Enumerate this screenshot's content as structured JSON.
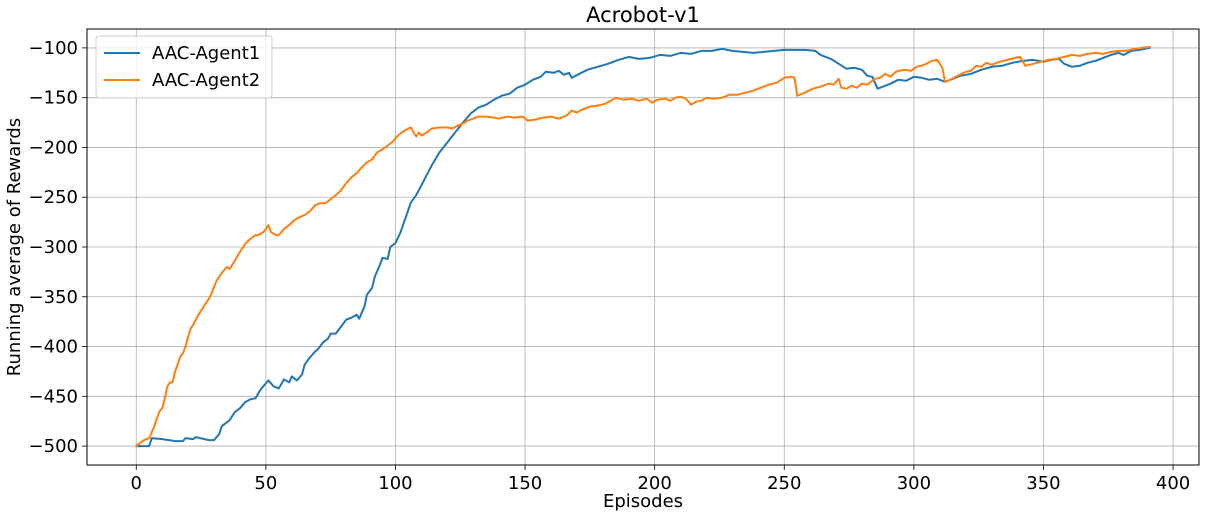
{
  "chart_data": {
    "type": "line",
    "title": "Acrobot-v1",
    "xlabel": "Episodes",
    "ylabel": "Running average of Rewards",
    "xlim": [
      -19,
      410
    ],
    "ylim": [
      -519,
      -81
    ],
    "xticks": [
      0,
      50,
      100,
      150,
      200,
      250,
      300,
      350,
      400
    ],
    "yticks": [
      -500,
      -450,
      -400,
      -350,
      -300,
      -250,
      -200,
      -150,
      -100
    ],
    "grid": true,
    "legend_position": "top-left",
    "series": [
      {
        "name": "AAC-Agent1",
        "color": "#1f77b4",
        "points": [
          [
            0,
            -500
          ],
          [
            5,
            -500
          ],
          [
            6,
            -492
          ],
          [
            10,
            -493
          ],
          [
            15,
            -495
          ],
          [
            18,
            -495
          ],
          [
            19,
            -492
          ],
          [
            22,
            -493
          ],
          [
            23,
            -491
          ],
          [
            28,
            -494
          ],
          [
            30,
            -494
          ],
          [
            32,
            -488
          ],
          [
            33,
            -480
          ],
          [
            36,
            -474
          ],
          [
            38,
            -466
          ],
          [
            40,
            -462
          ],
          [
            42,
            -456
          ],
          [
            44,
            -453
          ],
          [
            46,
            -452
          ],
          [
            48,
            -443
          ],
          [
            51,
            -434
          ],
          [
            53,
            -440
          ],
          [
            55,
            -442
          ],
          [
            57,
            -433
          ],
          [
            59,
            -436
          ],
          [
            60,
            -430
          ],
          [
            62,
            -434
          ],
          [
            64,
            -428
          ],
          [
            65,
            -418
          ],
          [
            67,
            -411
          ],
          [
            69,
            -405
          ],
          [
            70,
            -403
          ],
          [
            72,
            -396
          ],
          [
            74,
            -392
          ],
          [
            75,
            -387
          ],
          [
            77,
            -387
          ],
          [
            79,
            -380
          ],
          [
            81,
            -373
          ],
          [
            83,
            -371
          ],
          [
            85,
            -368
          ],
          [
            86,
            -372
          ],
          [
            88,
            -360
          ],
          [
            89,
            -348
          ],
          [
            91,
            -341
          ],
          [
            92,
            -330
          ],
          [
            94,
            -318
          ],
          [
            95,
            -311
          ],
          [
            97,
            -312
          ],
          [
            98,
            -300
          ],
          [
            100,
            -296
          ],
          [
            102,
            -285
          ],
          [
            104,
            -270
          ],
          [
            106,
            -255
          ],
          [
            108,
            -248
          ],
          [
            110,
            -238
          ],
          [
            112,
            -228
          ],
          [
            114,
            -218
          ],
          [
            117,
            -205
          ],
          [
            120,
            -195
          ],
          [
            123,
            -185
          ],
          [
            126,
            -175
          ],
          [
            129,
            -166
          ],
          [
            132,
            -160
          ],
          [
            135,
            -157
          ],
          [
            138,
            -152
          ],
          [
            141,
            -148
          ],
          [
            144,
            -146
          ],
          [
            147,
            -140
          ],
          [
            150,
            -137
          ],
          [
            153,
            -132
          ],
          [
            156,
            -129
          ],
          [
            158,
            -124
          ],
          [
            161,
            -125
          ],
          [
            163,
            -123
          ],
          [
            165,
            -127
          ],
          [
            167,
            -125
          ],
          [
            168,
            -130
          ],
          [
            171,
            -126
          ],
          [
            174,
            -122
          ],
          [
            178,
            -119
          ],
          [
            182,
            -116
          ],
          [
            186,
            -112
          ],
          [
            190,
            -109
          ],
          [
            194,
            -111
          ],
          [
            198,
            -110
          ],
          [
            202,
            -107
          ],
          [
            206,
            -108
          ],
          [
            210,
            -105
          ],
          [
            214,
            -106
          ],
          [
            218,
            -103
          ],
          [
            222,
            -103
          ],
          [
            226,
            -101
          ],
          [
            230,
            -103
          ],
          [
            234,
            -104
          ],
          [
            238,
            -105
          ],
          [
            242,
            -104
          ],
          [
            246,
            -103
          ],
          [
            250,
            -102
          ],
          [
            254,
            -102
          ],
          [
            258,
            -102
          ],
          [
            262,
            -103
          ],
          [
            264,
            -107
          ],
          [
            268,
            -111
          ],
          [
            271,
            -116
          ],
          [
            274,
            -121
          ],
          [
            277,
            -120
          ],
          [
            280,
            -122
          ],
          [
            282,
            -128
          ],
          [
            284,
            -129
          ],
          [
            286,
            -141
          ],
          [
            288,
            -139
          ],
          [
            291,
            -136
          ],
          [
            294,
            -132
          ],
          [
            297,
            -133
          ],
          [
            300,
            -129
          ],
          [
            303,
            -130
          ],
          [
            306,
            -132
          ],
          [
            309,
            -131
          ],
          [
            312,
            -134
          ],
          [
            315,
            -131
          ],
          [
            318,
            -128
          ],
          [
            322,
            -126
          ],
          [
            326,
            -122
          ],
          [
            330,
            -119
          ],
          [
            334,
            -118
          ],
          [
            338,
            -115
          ],
          [
            342,
            -113
          ],
          [
            346,
            -112
          ],
          [
            350,
            -114
          ],
          [
            353,
            -112
          ],
          [
            356,
            -111
          ],
          [
            358,
            -116
          ],
          [
            361,
            -119
          ],
          [
            364,
            -118
          ],
          [
            367,
            -115
          ],
          [
            370,
            -113
          ],
          [
            373,
            -110
          ],
          [
            376,
            -107
          ],
          [
            379,
            -105
          ],
          [
            381,
            -107
          ],
          [
            384,
            -103
          ],
          [
            387,
            -102
          ],
          [
            391,
            -100
          ]
        ]
      },
      {
        "name": "AAC-Agent2",
        "color": "#ff7f0e",
        "points": [
          [
            0,
            -500
          ],
          [
            1,
            -498
          ],
          [
            3,
            -494
          ],
          [
            5,
            -492
          ],
          [
            6,
            -486
          ],
          [
            7,
            -480
          ],
          [
            8,
            -472
          ],
          [
            9,
            -465
          ],
          [
            10,
            -462
          ],
          [
            11,
            -452
          ],
          [
            12,
            -440
          ],
          [
            13,
            -436
          ],
          [
            14,
            -436
          ],
          [
            15,
            -425
          ],
          [
            16,
            -418
          ],
          [
            17,
            -410
          ],
          [
            18,
            -407
          ],
          [
            19,
            -400
          ],
          [
            20,
            -390
          ],
          [
            21,
            -382
          ],
          [
            22,
            -378
          ],
          [
            24,
            -368
          ],
          [
            26,
            -360
          ],
          [
            28,
            -352
          ],
          [
            29,
            -347
          ],
          [
            31,
            -334
          ],
          [
            33,
            -326
          ],
          [
            35,
            -320
          ],
          [
            36,
            -322
          ],
          [
            38,
            -314
          ],
          [
            40,
            -305
          ],
          [
            42,
            -297
          ],
          [
            44,
            -292
          ],
          [
            46,
            -288
          ],
          [
            47,
            -288
          ],
          [
            49,
            -285
          ],
          [
            50,
            -282
          ],
          [
            51,
            -278
          ],
          [
            52,
            -285
          ],
          [
            54,
            -288
          ],
          [
            55,
            -288
          ],
          [
            57,
            -282
          ],
          [
            59,
            -278
          ],
          [
            61,
            -273
          ],
          [
            63,
            -270
          ],
          [
            65,
            -268
          ],
          [
            67,
            -264
          ],
          [
            69,
            -258
          ],
          [
            71,
            -256
          ],
          [
            73,
            -256
          ],
          [
            75,
            -252
          ],
          [
            77,
            -248
          ],
          [
            79,
            -243
          ],
          [
            81,
            -236
          ],
          [
            83,
            -230
          ],
          [
            85,
            -226
          ],
          [
            87,
            -220
          ],
          [
            89,
            -215
          ],
          [
            91,
            -212
          ],
          [
            93,
            -205
          ],
          [
            95,
            -202
          ],
          [
            97,
            -198
          ],
          [
            99,
            -194
          ],
          [
            101,
            -188
          ],
          [
            103,
            -184
          ],
          [
            105,
            -181
          ],
          [
            106,
            -180
          ],
          [
            107,
            -185
          ],
          [
            108,
            -189
          ],
          [
            109,
            -185
          ],
          [
            110,
            -188
          ],
          [
            112,
            -185
          ],
          [
            114,
            -181
          ],
          [
            117,
            -180
          ],
          [
            120,
            -180
          ],
          [
            122,
            -181
          ],
          [
            124,
            -178
          ],
          [
            126,
            -176
          ],
          [
            128,
            -173
          ],
          [
            130,
            -171
          ],
          [
            132,
            -169
          ],
          [
            135,
            -169
          ],
          [
            138,
            -170
          ],
          [
            140,
            -171
          ],
          [
            143,
            -169
          ],
          [
            146,
            -170
          ],
          [
            149,
            -169
          ],
          [
            151,
            -173
          ],
          [
            154,
            -172
          ],
          [
            157,
            -170
          ],
          [
            160,
            -169
          ],
          [
            163,
            -171
          ],
          [
            166,
            -168
          ],
          [
            168,
            -163
          ],
          [
            170,
            -165
          ],
          [
            172,
            -162
          ],
          [
            175,
            -159
          ],
          [
            178,
            -158
          ],
          [
            181,
            -156
          ],
          [
            183,
            -153
          ],
          [
            185,
            -150
          ],
          [
            188,
            -152
          ],
          [
            191,
            -151
          ],
          [
            194,
            -153
          ],
          [
            197,
            -151
          ],
          [
            199,
            -155
          ],
          [
            201,
            -152
          ],
          [
            204,
            -151
          ],
          [
            206,
            -153
          ],
          [
            208,
            -150
          ],
          [
            210,
            -149
          ],
          [
            212,
            -151
          ],
          [
            214,
            -157
          ],
          [
            216,
            -154
          ],
          [
            218,
            -153
          ],
          [
            220,
            -150
          ],
          [
            223,
            -151
          ],
          [
            226,
            -150
          ],
          [
            229,
            -147
          ],
          [
            232,
            -147
          ],
          [
            235,
            -145
          ],
          [
            238,
            -143
          ],
          [
            241,
            -140
          ],
          [
            244,
            -137
          ],
          [
            247,
            -135
          ],
          [
            250,
            -130
          ],
          [
            253,
            -129
          ],
          [
            254,
            -130
          ],
          [
            255,
            -148
          ],
          [
            258,
            -145
          ],
          [
            261,
            -141
          ],
          [
            264,
            -139
          ],
          [
            267,
            -136
          ],
          [
            269,
            -137
          ],
          [
            271,
            -131
          ],
          [
            272,
            -140
          ],
          [
            274,
            -141
          ],
          [
            276,
            -138
          ],
          [
            278,
            -140
          ],
          [
            280,
            -136
          ],
          [
            282,
            -137
          ],
          [
            285,
            -131
          ],
          [
            287,
            -130
          ],
          [
            289,
            -126
          ],
          [
            291,
            -129
          ],
          [
            293,
            -124
          ],
          [
            296,
            -122
          ],
          [
            299,
            -123
          ],
          [
            301,
            -119
          ],
          [
            304,
            -117
          ],
          [
            307,
            -113
          ],
          [
            309,
            -112
          ],
          [
            311,
            -120
          ],
          [
            312,
            -134
          ],
          [
            314,
            -132
          ],
          [
            317,
            -128
          ],
          [
            320,
            -124
          ],
          [
            322,
            -123
          ],
          [
            324,
            -118
          ],
          [
            326,
            -119
          ],
          [
            328,
            -115
          ],
          [
            330,
            -117
          ],
          [
            333,
            -114
          ],
          [
            336,
            -112
          ],
          [
            339,
            -110
          ],
          [
            341,
            -109
          ],
          [
            343,
            -118
          ],
          [
            346,
            -116
          ],
          [
            349,
            -114
          ],
          [
            352,
            -112
          ],
          [
            355,
            -111
          ],
          [
            358,
            -109
          ],
          [
            361,
            -107
          ],
          [
            364,
            -108
          ],
          [
            367,
            -106
          ],
          [
            370,
            -105
          ],
          [
            373,
            -106
          ],
          [
            376,
            -104
          ],
          [
            379,
            -103
          ],
          [
            382,
            -103
          ],
          [
            385,
            -101
          ],
          [
            388,
            -100
          ],
          [
            391,
            -99
          ]
        ]
      }
    ]
  }
}
